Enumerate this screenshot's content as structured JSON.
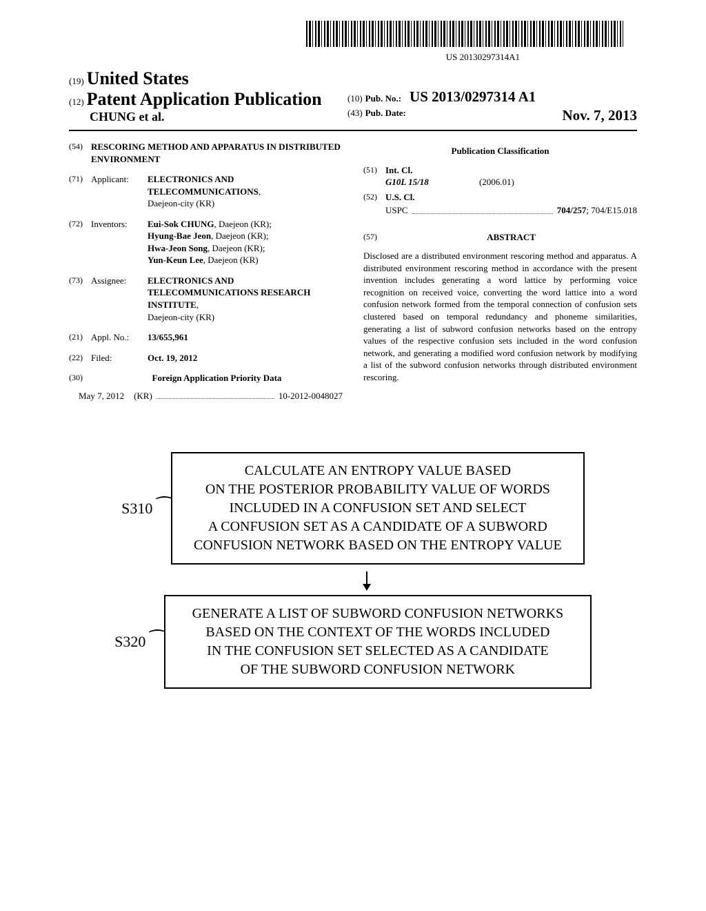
{
  "barcode_number": "US 20130297314A1",
  "header": {
    "country_code": "(19)",
    "country": "United States",
    "pub_type_code": "(12)",
    "pub_type": "Patent Application Publication",
    "authors": "CHUNG et al.",
    "pub_no_code": "(10)",
    "pub_no_label": "Pub. No.:",
    "pub_no": "US 2013/0297314 A1",
    "pub_date_code": "(43)",
    "pub_date_label": "Pub. Date:",
    "pub_date": "Nov. 7, 2013"
  },
  "left": {
    "title_code": "(54)",
    "title": "RESCORING METHOD AND APPARATUS IN DISTRIBUTED ENVIRONMENT",
    "applicant_code": "(71)",
    "applicant_label": "Applicant:",
    "applicant": "ELECTRONICS AND TELECOMMUNICATIONS",
    "applicant_loc": "Daejeon-city (KR)",
    "inventors_code": "(72)",
    "inventors_label": "Inventors:",
    "inventor1": "Eui-Sok CHUNG",
    "inventor1_loc": ", Daejeon (KR);",
    "inventor2": "Hyung-Bae Jeon",
    "inventor2_loc": ", Daejeon (KR);",
    "inventor3": "Hwa-Jeon Song",
    "inventor3_loc": ", Daejeon (KR);",
    "inventor4": "Yun-Keun Lee",
    "inventor4_loc": ", Daejeon (KR)",
    "assignee_code": "(73)",
    "assignee_label": "Assignee:",
    "assignee": "ELECTRONICS AND TELECOMMUNICATIONS RESEARCH INSTITUTE",
    "assignee_loc": "Daejeon-city (KR)",
    "applno_code": "(21)",
    "applno_label": "Appl. No.:",
    "applno": "13/655,961",
    "filed_code": "(22)",
    "filed_label": "Filed:",
    "filed": "Oct. 19, 2012",
    "priority_code": "(30)",
    "priority_heading": "Foreign Application Priority Data",
    "priority_date": "May 7, 2012",
    "priority_country": "(KR)",
    "priority_number": "10-2012-0048027"
  },
  "right": {
    "classification_heading": "Publication Classification",
    "intcl_code": "(51)",
    "intcl_label": "Int. Cl.",
    "intcl_code1": "G10L 15/18",
    "intcl_date1": "(2006.01)",
    "uscl_code": "(52)",
    "uscl_label": "U.S. Cl.",
    "uscl_prefix": "USPC",
    "uscl_value": "704/257; 704/E15.018",
    "abstract_code": "(57)",
    "abstract_label": "ABSTRACT",
    "abstract_text": "Disclosed are a distributed environment rescoring method and apparatus. A distributed environment rescoring method in accordance with the present invention includes generating a word lattice by performing voice recognition on received voice, converting the word lattice into a word confusion network formed from the temporal connection of confusion sets clustered based on temporal redundancy and phoneme similarities, generating a list of subword confusion networks based on the entropy values of the respective confusion sets included in the word confusion network, and generating a modified word confusion network by modifying a list of the subword confusion networks through distributed environment rescoring."
  },
  "flowchart": {
    "step1_label": "S310",
    "step1_text": "CALCULATE AN ENTROPY VALUE BASED\nON THE POSTERIOR PROBABILITY VALUE OF WORDS\nINCLUDED IN A CONFUSION SET AND SELECT\nA CONFUSION SET AS A CANDIDATE OF A SUBWORD\nCONFUSION NETWORK BASED ON THE ENTROPY VALUE",
    "step2_label": "S320",
    "step2_text": "GENERATE A LIST OF SUBWORD CONFUSION NETWORKS\nBASED ON THE CONTEXT OF THE WORDS INCLUDED\nIN THE CONFUSION SET SELECTED AS A CANDIDATE\nOF THE SUBWORD CONFUSION NETWORK",
    "box_border_color": "#000000",
    "font_size_box": 20,
    "font_size_label": 22
  },
  "colors": {
    "background": "#ffffff",
    "text": "#000000",
    "rule": "#000000"
  }
}
